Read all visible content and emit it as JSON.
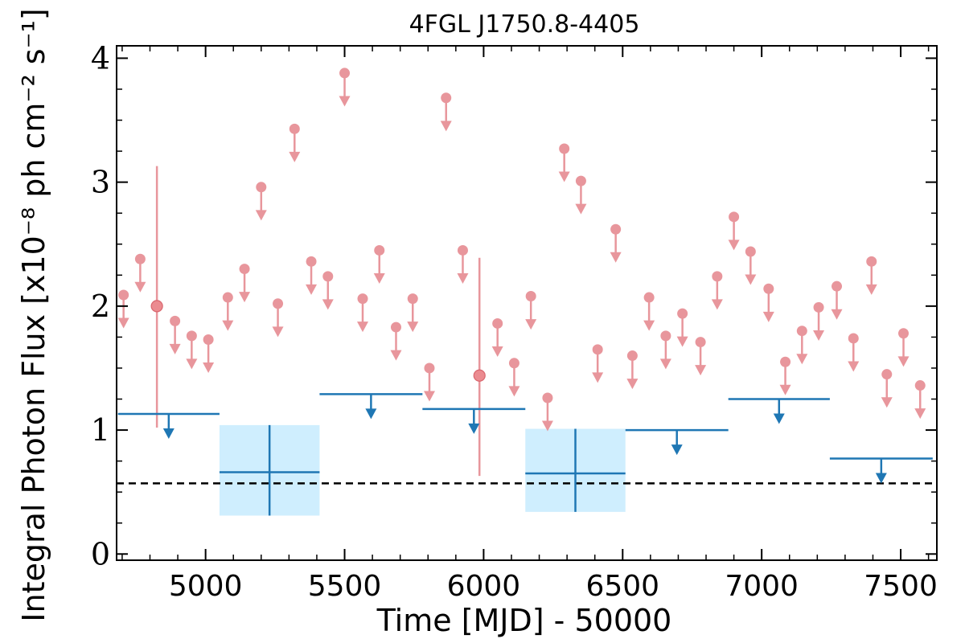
{
  "chart_data": {
    "type": "scatter",
    "title": "4FGL J1750.8-4405",
    "xlabel": "Time [MJD] - 50000",
    "ylabel": "Integral Photon Flux [x10⁻⁸ ph cm⁻² s⁻¹]",
    "xlim": [
      4680,
      7630
    ],
    "ylim": [
      -0.05,
      4.1
    ],
    "x_ticks": [
      5000,
      5500,
      6000,
      6500,
      7000,
      7500
    ],
    "x_tick_labels": [
      "5000",
      "5500",
      "6000",
      "6500",
      "7000",
      "7500"
    ],
    "y_ticks": [
      0,
      1,
      2,
      3,
      4
    ],
    "y_tick_labels": [
      "0",
      "1",
      "2",
      "3",
      "4"
    ],
    "colors": {
      "short_bins": "#e8969c",
      "long_bins": "#1f77b4",
      "error_box": "#cfeefe",
      "reference_line": "#000000"
    },
    "reference_line": {
      "y": 0.57,
      "style": "dashed"
    },
    "series": [
      {
        "bin_width_days": 61,
        "upper_limits": [
          {
            "x": 4705,
            "y": 2.09
          },
          {
            "x": 4765,
            "y": 2.38
          },
          {
            "x": 4890,
            "y": 1.88
          },
          {
            "x": 4950,
            "y": 1.76
          },
          {
            "x": 5010,
            "y": 1.73
          },
          {
            "x": 5080,
            "y": 2.07
          },
          {
            "x": 5140,
            "y": 2.3
          },
          {
            "x": 5200,
            "y": 2.96
          },
          {
            "x": 5260,
            "y": 2.02
          },
          {
            "x": 5320,
            "y": 3.43
          },
          {
            "x": 5380,
            "y": 2.36
          },
          {
            "x": 5440,
            "y": 2.24
          },
          {
            "x": 5500,
            "y": 3.88
          },
          {
            "x": 5565,
            "y": 2.06
          },
          {
            "x": 5625,
            "y": 2.45
          },
          {
            "x": 5685,
            "y": 1.83
          },
          {
            "x": 5745,
            "y": 2.06
          },
          {
            "x": 5805,
            "y": 1.5
          },
          {
            "x": 5865,
            "y": 3.68
          },
          {
            "x": 5925,
            "y": 2.45
          },
          {
            "x": 6050,
            "y": 1.86
          },
          {
            "x": 6110,
            "y": 1.54
          },
          {
            "x": 6170,
            "y": 2.08
          },
          {
            "x": 6230,
            "y": 1.26
          },
          {
            "x": 6290,
            "y": 3.27
          },
          {
            "x": 6350,
            "y": 3.01
          },
          {
            "x": 6410,
            "y": 1.65
          },
          {
            "x": 6475,
            "y": 2.62
          },
          {
            "x": 6535,
            "y": 1.6
          },
          {
            "x": 6595,
            "y": 2.07
          },
          {
            "x": 6655,
            "y": 1.76
          },
          {
            "x": 6715,
            "y": 1.94
          },
          {
            "x": 6780,
            "y": 1.71
          },
          {
            "x": 6840,
            "y": 2.24
          },
          {
            "x": 6900,
            "y": 2.72
          },
          {
            "x": 6960,
            "y": 2.44
          },
          {
            "x": 7025,
            "y": 2.14
          },
          {
            "x": 7085,
            "y": 1.55
          },
          {
            "x": 7145,
            "y": 1.8
          },
          {
            "x": 7205,
            "y": 1.99
          },
          {
            "x": 7270,
            "y": 2.16
          },
          {
            "x": 7330,
            "y": 1.74
          },
          {
            "x": 7395,
            "y": 2.36
          },
          {
            "x": 7450,
            "y": 1.45
          },
          {
            "x": 7510,
            "y": 1.78
          },
          {
            "x": 7570,
            "y": 1.36
          }
        ],
        "detections": [
          {
            "x": 4825,
            "y": 2.0,
            "ylow": 1.02,
            "yhigh": 3.13
          },
          {
            "x": 5985,
            "y": 1.44,
            "ylow": 0.63,
            "yhigh": 2.39
          }
        ]
      },
      {
        "bin_width_days": 365,
        "upper_limits": [
          {
            "x0": 4685,
            "x1": 5050,
            "y": 1.13
          },
          {
            "x0": 5410,
            "x1": 5780,
            "y": 1.29
          },
          {
            "x0": 5780,
            "x1": 6150,
            "y": 1.17
          },
          {
            "x0": 6510,
            "x1": 6880,
            "y": 1.0
          },
          {
            "x0": 6880,
            "x1": 7245,
            "y": 1.25
          },
          {
            "x0": 7245,
            "x1": 7615,
            "y": 0.77
          }
        ],
        "detections": [
          {
            "x0": 5050,
            "x1": 5410,
            "x": 5230,
            "y": 0.66,
            "ylow": 0.31,
            "yhigh": 1.04
          },
          {
            "x0": 6150,
            "x1": 6510,
            "x": 6330,
            "y": 0.65,
            "ylow": 0.34,
            "yhigh": 1.01
          }
        ]
      }
    ]
  }
}
